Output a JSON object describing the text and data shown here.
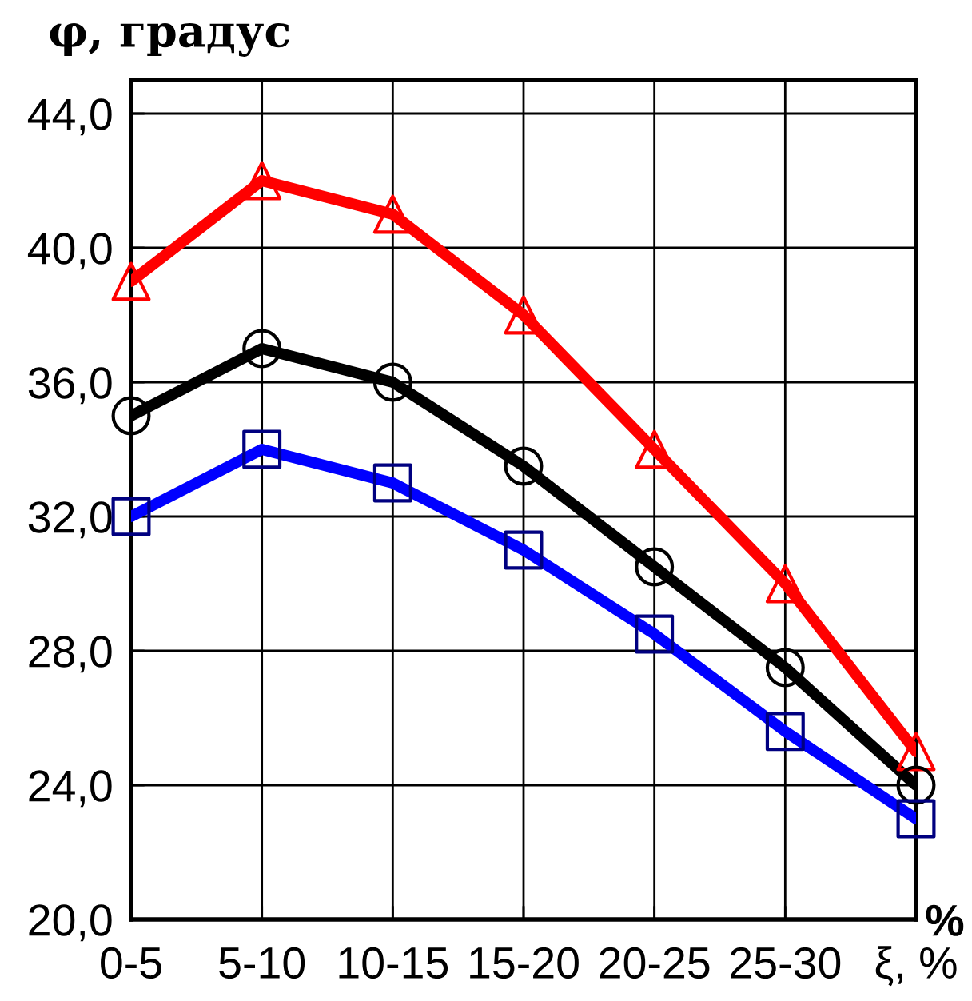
{
  "chart_data": {
    "type": "line",
    "ylabel": "φ, градус",
    "categories": [
      "0-5",
      "5-10",
      "10-15",
      "15-20",
      "20-25",
      "25-30",
      "ξ, %"
    ],
    "series": [
      {
        "color": "#ff0000",
        "marker": "triangle",
        "values": [
          39,
          42,
          41,
          38,
          34,
          30,
          25
        ]
      },
      {
        "color": "#000000",
        "marker": "circle",
        "values": [
          35,
          37,
          36,
          33.5,
          30.5,
          27.5,
          24
        ]
      },
      {
        "color": "#0000ff",
        "marker": "square",
        "values": [
          32,
          34,
          33,
          31,
          28.5,
          25.6,
          23
        ]
      }
    ],
    "ylim": [
      20,
      45
    ],
    "yticks": [
      {
        "value": 20,
        "label": "20,0"
      },
      {
        "value": 24,
        "label": "24,0"
      },
      {
        "value": 28,
        "label": "28,0"
      },
      {
        "value": 32,
        "label": "32,0"
      },
      {
        "value": 36,
        "label": "36,0"
      },
      {
        "value": 40,
        "label": "40,0"
      },
      {
        "value": 44,
        "label": "44,0"
      }
    ],
    "grid": true,
    "annotations": [
      "%"
    ]
  }
}
